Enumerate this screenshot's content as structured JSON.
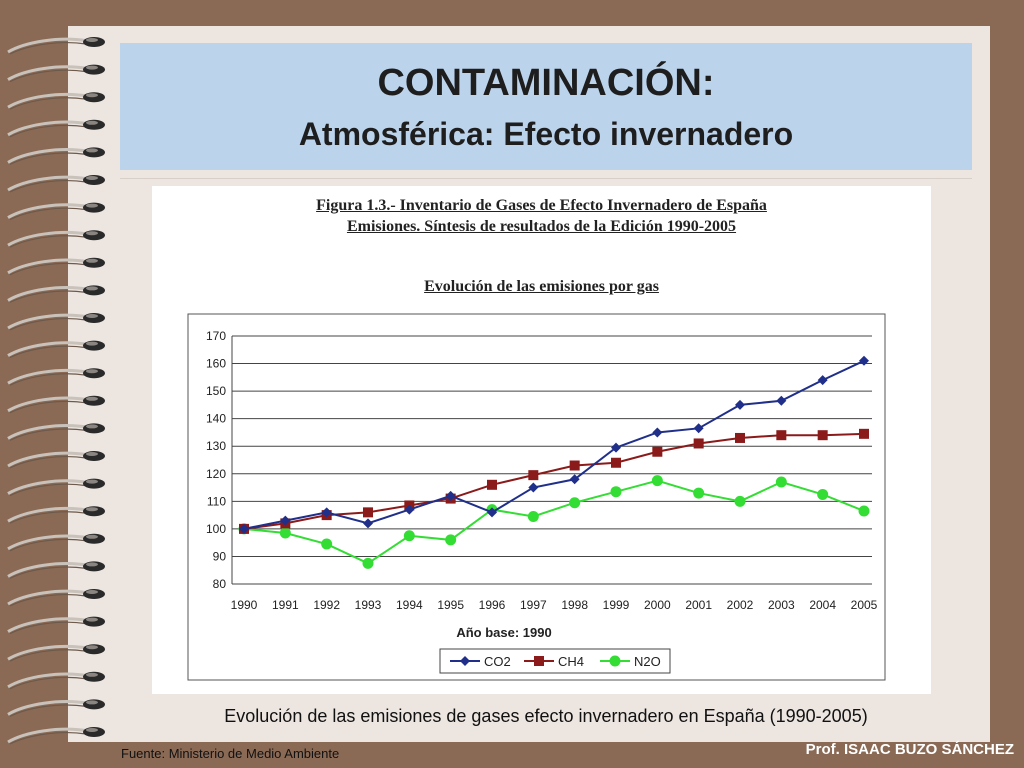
{
  "slide": {
    "title": "CONTAMINACIÓN:",
    "subtitle": "Atmosférica: Efecto invernadero",
    "caption": "Evolución de las emisiones de gases efecto invernadero en España (1990-2005)",
    "source": "Fuente: Ministerio de Medio Ambiente",
    "author": "Prof. ISAAC BUZO SÁNCHEZ"
  },
  "figure": {
    "heading_line1": "Figura 1.3.- Inventario de Gases de Efecto Invernadero de España",
    "heading_line2": "Emisiones. Síntesis de resultados de la Edición 1990-2005",
    "chart_heading": "Evolución de las emisiones por gas"
  },
  "chart_data": {
    "type": "line",
    "title": "Evolución de las emisiones por gas",
    "xlabel": "Año base: 1990",
    "ylabel": "",
    "categories": [
      "1990",
      "1991",
      "1992",
      "1993",
      "1994",
      "1995",
      "1996",
      "1997",
      "1998",
      "1999",
      "2000",
      "2001",
      "2002",
      "2003",
      "2004",
      "2005"
    ],
    "ylim": [
      80,
      170
    ],
    "yticks": [
      80,
      90,
      100,
      110,
      120,
      130,
      140,
      150,
      160,
      170
    ],
    "grid": true,
    "legend": "bottom",
    "series": [
      {
        "name": "CO2",
        "color": "#1f2f8a",
        "marker": "diamond",
        "values": [
          100,
          103,
          106,
          102,
          107,
          112,
          106,
          115,
          118,
          129.5,
          135,
          136.5,
          145,
          146.5,
          154,
          161
        ]
      },
      {
        "name": "CH4",
        "color": "#8b1a1a",
        "marker": "square",
        "values": [
          100,
          102,
          105,
          106,
          108.5,
          111,
          116,
          119.5,
          123,
          124,
          128,
          131,
          133,
          134,
          134,
          134.5
        ]
      },
      {
        "name": "N2O",
        "color": "#33dd33",
        "marker": "circle",
        "values": [
          100,
          98.5,
          94.5,
          87.5,
          97.5,
          96,
          107,
          104.5,
          109.5,
          113.5,
          117.5,
          113,
          110,
          117,
          112.5,
          106.5
        ]
      }
    ]
  }
}
